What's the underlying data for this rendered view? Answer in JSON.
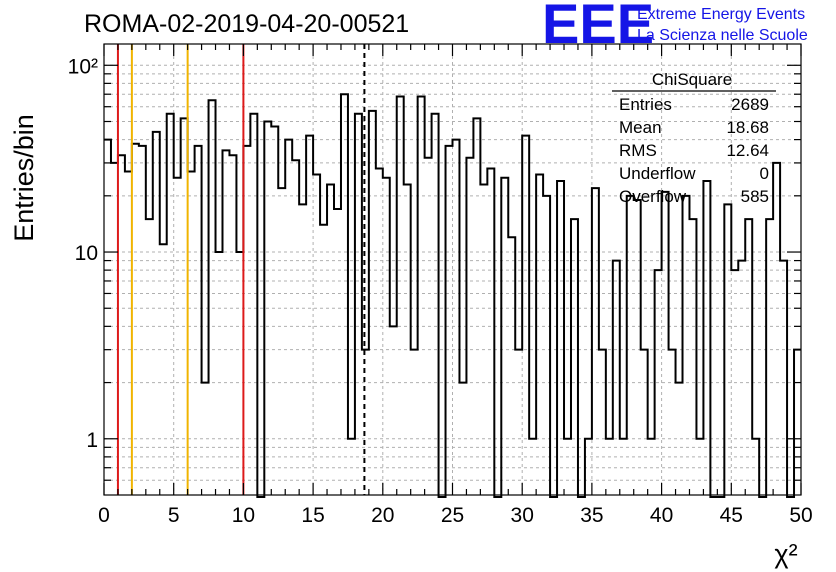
{
  "header": {
    "title": "ROMA-02-2019-04-20-00521",
    "logo": "EEE",
    "logo_line1": "Extreme Energy Events",
    "logo_line2": "La Scienza nelle Scuole"
  },
  "stats": {
    "name": "ChiSquare",
    "entries_label": "Entries",
    "entries_value": "2689",
    "mean_label": "Mean",
    "mean_value": "18.68",
    "rms_label": "RMS",
    "rms_value": "12.64",
    "underflow_label": "Underflow",
    "underflow_value": "0",
    "overflow_label": "Overflow",
    "overflow_value": "585"
  },
  "colors": {
    "red": "#dd1a1a",
    "yellow": "#f0b400",
    "logo": "#1515e6"
  },
  "chart_data": {
    "type": "histogram",
    "title": "ROMA-02-2019-04-20-00521",
    "xlabel": "χ²",
    "ylabel": "Entries/bin",
    "xlim": [
      0,
      50
    ],
    "ylim": [
      0.5,
      130
    ],
    "ylog": true,
    "grid": true,
    "bin_width": 0.5,
    "bin_start": 0,
    "values": [
      40,
      30,
      33,
      27,
      38,
      37,
      15,
      44,
      11,
      55,
      25,
      52,
      27,
      37,
      2,
      65,
      10,
      35,
      33,
      10,
      37,
      55,
      0,
      50,
      47,
      22,
      40,
      31,
      18,
      42,
      26,
      14,
      23,
      17,
      70,
      1,
      55,
      3,
      57,
      28,
      25,
      4,
      68,
      23,
      3,
      68,
      32,
      55,
      0,
      37,
      40,
      2,
      32,
      52,
      23,
      28,
      0,
      25,
      12,
      3,
      42,
      1,
      26,
      20,
      0,
      24,
      1,
      15,
      0,
      1,
      22,
      3,
      1,
      9,
      1,
      20,
      19,
      3,
      1,
      8,
      21,
      3,
      2,
      20,
      15,
      1,
      24,
      0,
      0,
      18,
      8,
      9,
      15,
      1,
      0,
      15,
      30,
      9,
      0,
      3
    ],
    "vlines": [
      {
        "x": 1,
        "color": "#dd1a1a",
        "style": "solid"
      },
      {
        "x": 2,
        "color": "#f0b400",
        "style": "solid"
      },
      {
        "x": 6,
        "color": "#f0b400",
        "style": "solid"
      },
      {
        "x": 10,
        "color": "#dd1a1a",
        "style": "solid"
      },
      {
        "x": 18.68,
        "color": "#000000",
        "style": "dashed"
      }
    ],
    "xticks": [
      0,
      5,
      10,
      15,
      20,
      25,
      30,
      35,
      40,
      45,
      50
    ],
    "yticks": [
      {
        "value": 1,
        "label": "1"
      },
      {
        "value": 10,
        "label": "10"
      },
      {
        "value": 100,
        "label": "10²"
      }
    ]
  }
}
